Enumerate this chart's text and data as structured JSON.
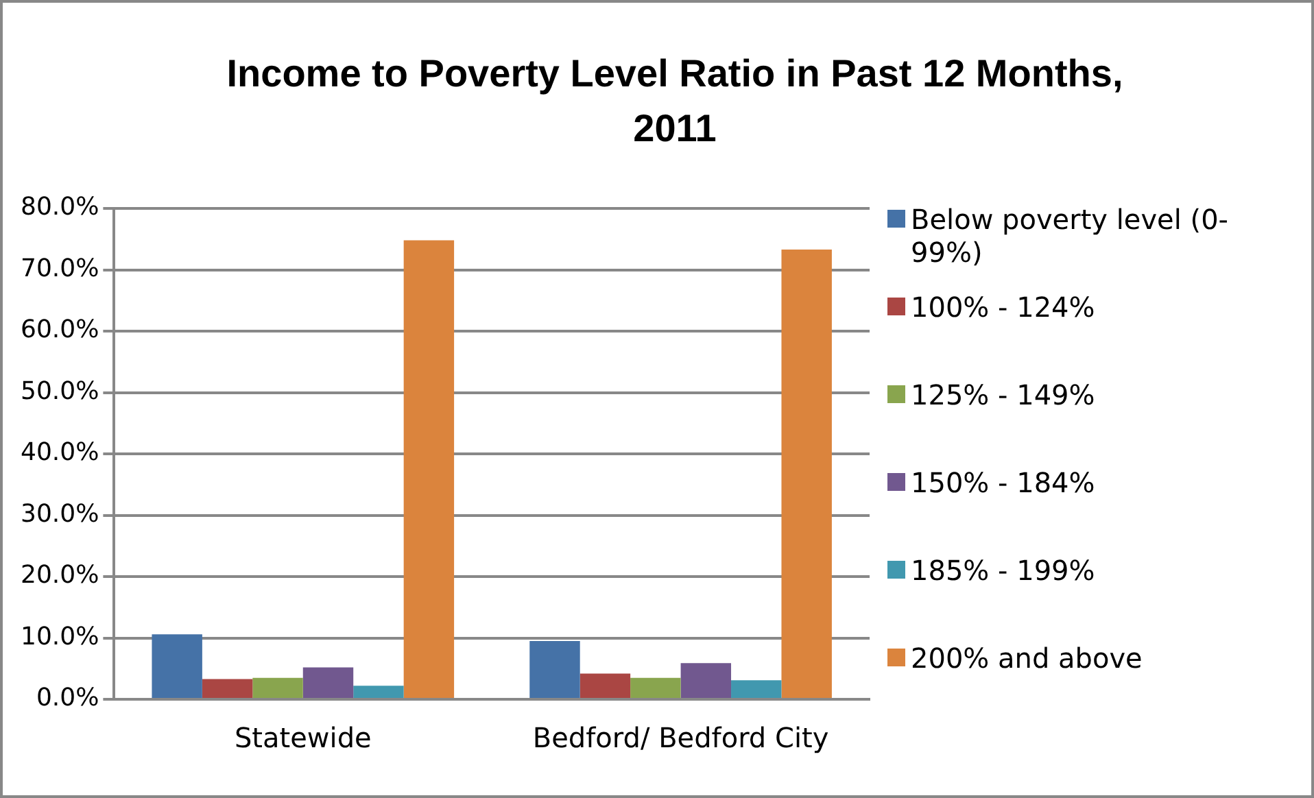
{
  "chart_data": {
    "type": "bar",
    "title": "Income to Poverty Level Ratio in Past 12 Months, 2011",
    "categories": [
      "Statewide",
      "Bedford/ Bedford City"
    ],
    "series": [
      {
        "name": "Below poverty level (0-99%)",
        "color": "#4572a7",
        "values": [
          10.6,
          9.5
        ]
      },
      {
        "name": "100% - 124%",
        "color": "#aa4643",
        "values": [
          3.3,
          4.2
        ]
      },
      {
        "name": "125% - 149%",
        "color": "#89a54e",
        "values": [
          3.5,
          3.5
        ]
      },
      {
        "name": "150% - 184%",
        "color": "#71588f",
        "values": [
          5.2,
          5.9
        ]
      },
      {
        "name": "185% - 199%",
        "color": "#4198af",
        "values": [
          2.2,
          3.1
        ]
      },
      {
        "name": "200% and above",
        "color": "#db843d",
        "values": [
          74.8,
          73.3
        ]
      }
    ],
    "ylim": [
      0,
      80
    ],
    "yticks": [
      {
        "value": 0,
        "label": "0.0%"
      },
      {
        "value": 10,
        "label": "10.0%"
      },
      {
        "value": 20,
        "label": "20.0%"
      },
      {
        "value": 30,
        "label": "30.0%"
      },
      {
        "value": 40,
        "label": "40.0%"
      },
      {
        "value": 50,
        "label": "50.0%"
      },
      {
        "value": 60,
        "label": "60.0%"
      },
      {
        "value": 70,
        "label": "70.0%"
      },
      {
        "value": 80,
        "label": "80.0%"
      }
    ],
    "grid": "y",
    "legend": "right"
  }
}
